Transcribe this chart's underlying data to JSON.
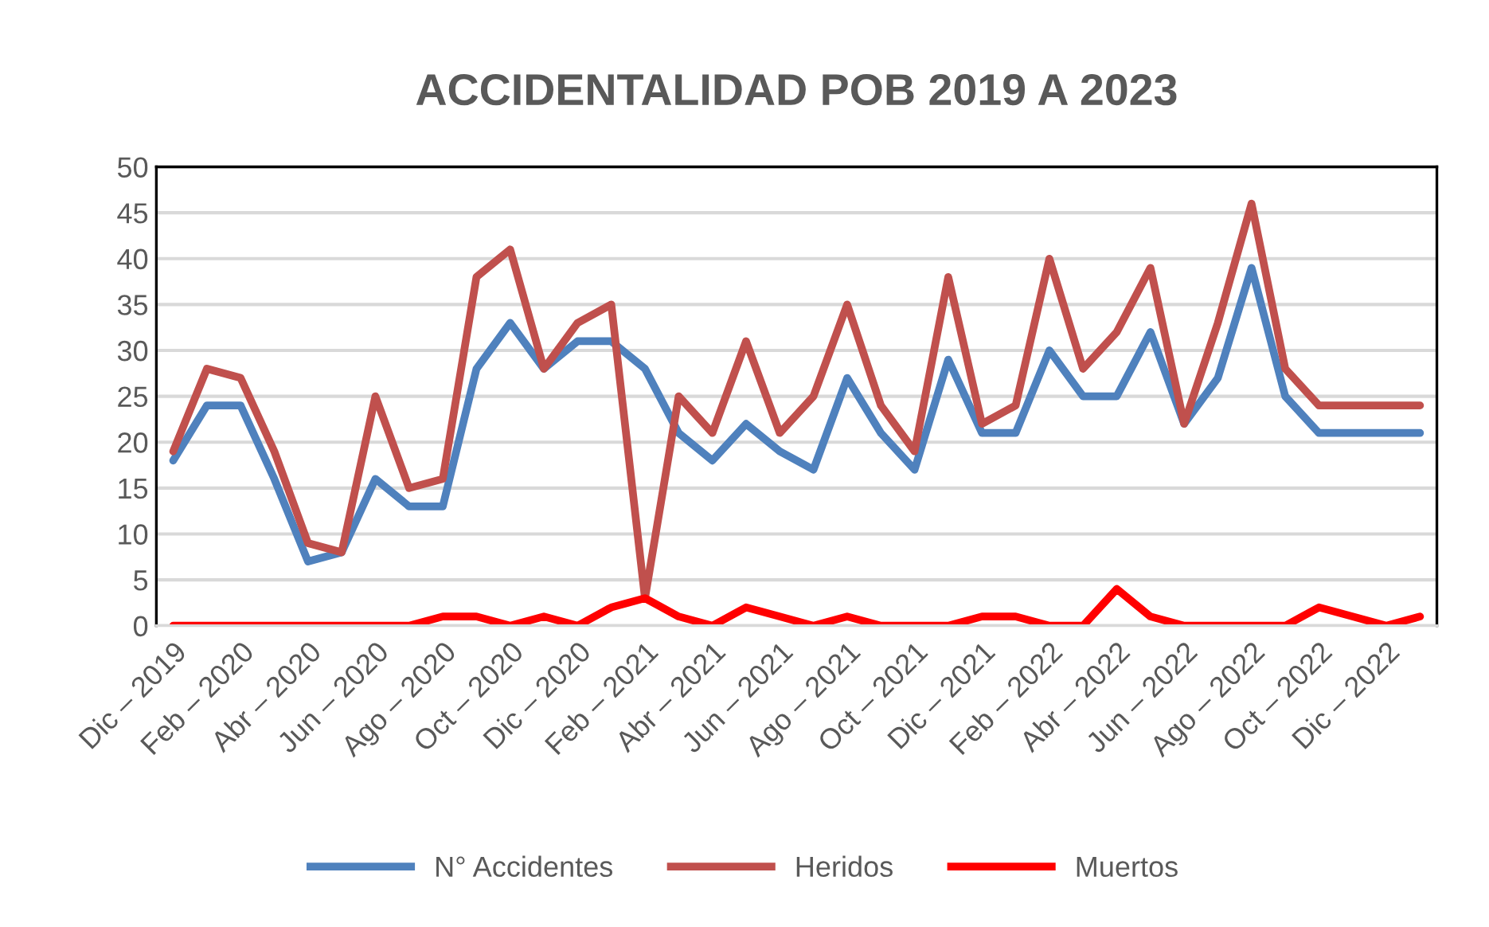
{
  "chart_data": {
    "type": "line",
    "title": "ACCIDENTALIDAD POB 2019 A 2023",
    "categories": [
      "Dic – 2019",
      null,
      "Feb – 2020",
      null,
      "Abr – 2020",
      null,
      "Jun – 2020",
      null,
      "Ago – 2020",
      null,
      "Oct – 2020",
      null,
      "Dic – 2020",
      null,
      "Feb – 2021",
      null,
      "Abr – 2021",
      null,
      "Jun – 2021",
      null,
      "Ago – 2021",
      null,
      "Oct – 2021",
      null,
      "Dic – 2021",
      null,
      "Feb – 2022",
      null,
      "Abr – 2022",
      null,
      "Jun – 2022",
      null,
      "Ago – 2022",
      null,
      "Oct – 2022",
      null,
      "Dic – 2022",
      null
    ],
    "series": [
      {
        "name": "N° Accidentes",
        "color": "#4f81bd",
        "values": [
          18,
          24,
          24,
          16,
          7,
          8,
          16,
          13,
          13,
          28,
          33,
          28,
          31,
          31,
          28,
          21,
          18,
          22,
          19,
          17,
          27,
          21,
          17,
          29,
          21,
          21,
          30,
          25,
          25,
          32,
          22,
          27,
          39,
          25,
          21,
          21,
          21,
          21
        ]
      },
      {
        "name": "Heridos",
        "color": "#c0504d",
        "values": [
          19,
          28,
          27,
          19,
          9,
          8,
          25,
          15,
          16,
          38,
          41,
          28,
          33,
          35,
          3,
          25,
          21,
          31,
          21,
          25,
          35,
          24,
          19,
          38,
          22,
          24,
          40,
          28,
          32,
          39,
          22,
          33,
          46,
          28,
          24,
          24,
          24,
          24
        ]
      },
      {
        "name": "Muertos",
        "color": "#ff0000",
        "values": [
          0,
          0,
          0,
          0,
          0,
          0,
          0,
          0,
          1,
          1,
          0,
          1,
          0,
          2,
          3,
          1,
          0,
          2,
          1,
          0,
          1,
          0,
          0,
          0,
          1,
          1,
          0,
          0,
          4,
          1,
          0,
          0,
          0,
          0,
          2,
          1,
          0,
          1
        ]
      }
    ],
    "ylim": [
      0,
      50
    ],
    "yticks": [
      0,
      5,
      10,
      15,
      20,
      25,
      30,
      35,
      40,
      45,
      50
    ],
    "grid": "y",
    "legend": "bottom",
    "marker": "none",
    "line_style": "solid"
  }
}
